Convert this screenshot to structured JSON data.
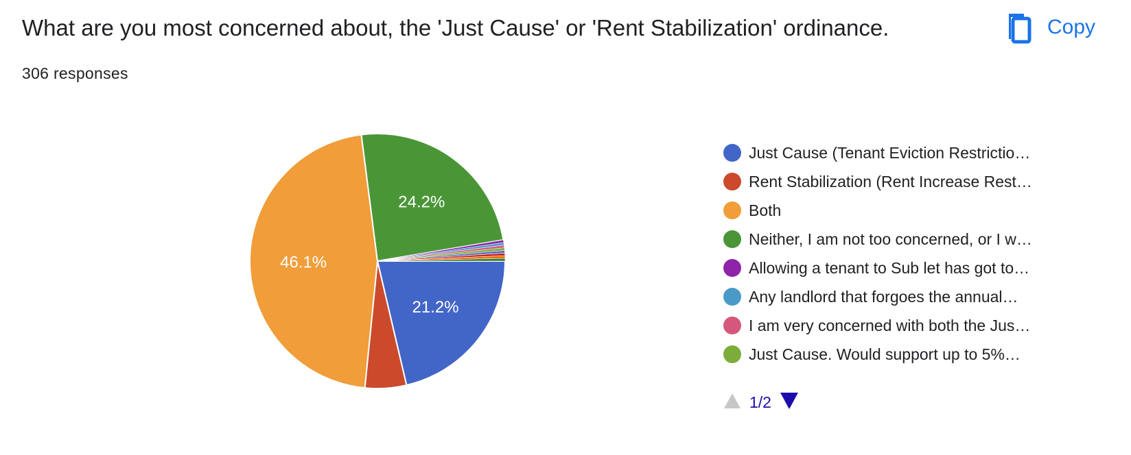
{
  "header": {
    "title": "What are you most concerned about, the 'Just Cause' or 'Rent Stabilization' ordinance.",
    "responses": "306 responses",
    "copy_label": "Copy",
    "copy_icon": "copy-icon"
  },
  "pager": {
    "text": "1/2",
    "prev_icon": "triangle-up-icon",
    "next_icon": "triangle-down-icon"
  },
  "colors": {
    "accent": "#1a73e8",
    "pager_text": "#1a0dab"
  },
  "chart_data": {
    "type": "pie",
    "total": 306,
    "legend_placement": "right",
    "slices": [
      {
        "label": "Just Cause (Tenant Eviction Restrictio…",
        "value": 21.2,
        "color": "#4265c8",
        "show_label": true,
        "display": "21.2%"
      },
      {
        "label": "Rent Stabilization (Rent Increase Rest…",
        "value": 5.2,
        "color": "#cb4a2c",
        "show_label": false
      },
      {
        "label": "Both",
        "value": 46.1,
        "color": "#f09d3a",
        "show_label": true,
        "display": "46.1%"
      },
      {
        "label": "Neither, I am not too concerned, or I w…",
        "value": 24.2,
        "color": "#4a9637",
        "show_label": true,
        "display": "24.2%"
      },
      {
        "label": "Allowing a tenant to Sub let has got to…",
        "value": 0.33,
        "color": "#8e24aa",
        "show_label": false
      },
      {
        "label": "Any landlord that forgoes the annual…",
        "value": 0.33,
        "color": "#4a9ac8",
        "show_label": false
      },
      {
        "label": "I am very concerned with both the Jus…",
        "value": 0.33,
        "color": "#d5577c",
        "show_label": false
      },
      {
        "label": "Just Cause. Would support up to 5%…",
        "value": 0.33,
        "color": "#7cad3a",
        "show_label": false
      },
      {
        "label": "",
        "value": 0.33,
        "color": "#5c6bc0",
        "show_label": false
      },
      {
        "label": "",
        "value": 0.33,
        "color": "#c62828",
        "show_label": false
      },
      {
        "label": "",
        "value": 0.33,
        "color": "#ef6c00",
        "show_label": false
      },
      {
        "label": "",
        "value": 0.33,
        "color": "#2e7d32",
        "show_label": false
      }
    ],
    "legend_visible_count": 8
  }
}
